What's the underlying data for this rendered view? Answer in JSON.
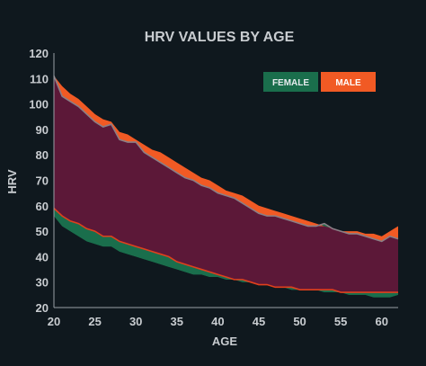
{
  "chart_data": {
    "type": "area",
    "title": "HRV VALUES BY AGE",
    "xlabel": "AGE",
    "ylabel": "HRV",
    "xlim": [
      20,
      62
    ],
    "ylim": [
      20,
      120
    ],
    "xticks": [
      20,
      25,
      30,
      35,
      40,
      45,
      50,
      55,
      60
    ],
    "yticks": [
      20,
      30,
      40,
      50,
      60,
      70,
      80,
      90,
      100,
      110,
      120
    ],
    "grid": false,
    "legend": {
      "placement": "top-right",
      "entries": [
        {
          "label": "FEMALE",
          "color": "#1a6e4c"
        },
        {
          "label": "MALE",
          "color": "#f15a24"
        }
      ]
    },
    "colors": {
      "background": "#0f181e",
      "band_fill": "#5c1838",
      "female": "#1a6e4c",
      "male": "#f15a24",
      "band_line": "#8a7f86",
      "axis": "#9aa0a6"
    },
    "x": [
      20,
      21,
      22,
      23,
      24,
      25,
      26,
      27,
      28,
      29,
      30,
      31,
      32,
      33,
      34,
      35,
      36,
      37,
      38,
      39,
      40,
      41,
      42,
      43,
      44,
      45,
      46,
      47,
      48,
      49,
      50,
      51,
      52,
      53,
      54,
      55,
      56,
      57,
      58,
      59,
      60,
      61,
      62
    ],
    "series": [
      {
        "name": "MALE",
        "role": "upper",
        "values": [
          111,
          107,
          104,
          102,
          99,
          96,
          94,
          93,
          89,
          88,
          86,
          84,
          82,
          81,
          79,
          77,
          75,
          73,
          71,
          70,
          68,
          66,
          65,
          64,
          62,
          60,
          59,
          58,
          57,
          56,
          55,
          54,
          53,
          52,
          51,
          50,
          50,
          50,
          49,
          49,
          48,
          50,
          52
        ]
      },
      {
        "name": "FEMALE",
        "role": "upper",
        "values": [
          111,
          103,
          101,
          99,
          96,
          93,
          91,
          92,
          86,
          85,
          85,
          81,
          79,
          77,
          75,
          73,
          71,
          70,
          68,
          67,
          65,
          64,
          63,
          61,
          59,
          57,
          56,
          56,
          55,
          54,
          53,
          52,
          52,
          53,
          51,
          50,
          49,
          49,
          48,
          47,
          46,
          48,
          47
        ]
      },
      {
        "name": "MALE",
        "role": "lower",
        "values": [
          59,
          56,
          54,
          53,
          51,
          50,
          48,
          48,
          46,
          45,
          44,
          43,
          42,
          41,
          40,
          38,
          37,
          36,
          35,
          34,
          33,
          32,
          31,
          31,
          30,
          29,
          29,
          28,
          28,
          28,
          27,
          27,
          27,
          27,
          27,
          26,
          26,
          26,
          26,
          26,
          26,
          26,
          26
        ]
      },
      {
        "name": "FEMALE",
        "role": "lower",
        "values": [
          56,
          52,
          50,
          48,
          46,
          45,
          44,
          44,
          42,
          41,
          40,
          39,
          38,
          37,
          36,
          35,
          34,
          33,
          33,
          32,
          32,
          31,
          31,
          30,
          30,
          29,
          29,
          28,
          28,
          27,
          27,
          27,
          27,
          26,
          26,
          26,
          25,
          25,
          25,
          24,
          24,
          24,
          25
        ]
      }
    ]
  }
}
